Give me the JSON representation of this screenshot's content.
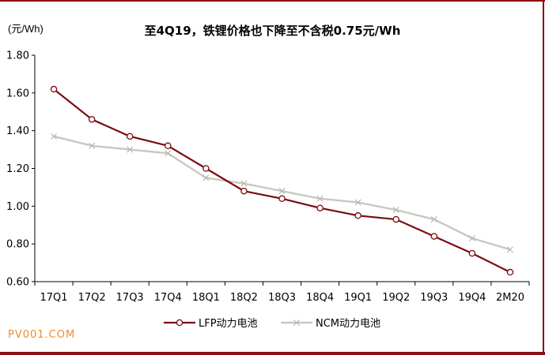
{
  "chart_data": {
    "type": "line",
    "title": "至4Q19，铁锂价格也下降至不含税0.75元/Wh",
    "ylabel": "(元/Wh)",
    "categories": [
      "17Q1",
      "17Q2",
      "17Q3",
      "17Q4",
      "18Q1",
      "18Q2",
      "18Q3",
      "18Q4",
      "19Q1",
      "19Q2",
      "19Q3",
      "19Q4",
      "2M20"
    ],
    "y_ticks": [
      "0.60",
      "0.80",
      "1.00",
      "1.20",
      "1.40",
      "1.60",
      "1.80"
    ],
    "ylim": [
      0.6,
      1.8
    ],
    "grid": false,
    "legend_position": "bottom",
    "series": [
      {
        "name": "LFP动力电池",
        "color": "#7b0a10",
        "marker": "circle",
        "values": [
          1.62,
          1.46,
          1.37,
          1.32,
          1.2,
          1.08,
          1.04,
          0.99,
          0.95,
          0.93,
          0.84,
          0.75,
          0.65
        ]
      },
      {
        "name": "NCM动力电池",
        "color": "#c8c8c0",
        "marker": "x",
        "values": [
          1.37,
          1.32,
          1.3,
          1.28,
          1.15,
          1.12,
          1.08,
          1.04,
          1.02,
          0.98,
          0.93,
          0.83,
          0.77
        ]
      }
    ]
  },
  "watermark": "PV001.COM"
}
